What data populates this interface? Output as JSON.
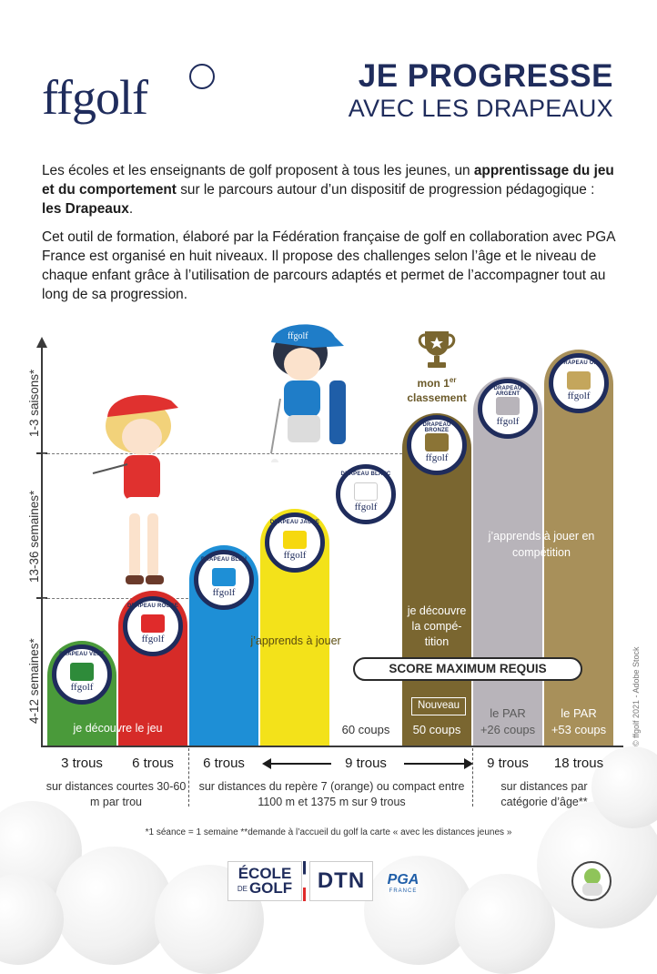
{
  "header": {
    "logo": "ffgolf",
    "title_line1": "JE PROGRESSE",
    "title_line2": "AVEC LES DRAPEAUX"
  },
  "intro": {
    "p1_a": "Les écoles et les enseignants de golf proposent à tous les jeunes, un ",
    "p1_b": "apprentissage du jeu et du comportement",
    "p1_c": " sur le parcours autour d’un dispositif de progression pédagogique : ",
    "p1_d": "les Drapeaux",
    "p1_e": ".",
    "p2": "Cet outil de formation, élaboré par la Fédération française de golf en collaboration avec PGA France est organisé en huit niveaux. Il propose des challenges selon l’âge et le niveau de chaque enfant grâce à l’utilisation de parcours adaptés et permet de l’accompagner tout au long de sa progression."
  },
  "axis": {
    "y_bottom": "4-12 semaines*",
    "y_middle": "13-36 semaines*",
    "y_top": "1-3 saisons*"
  },
  "flags": [
    {
      "name": "DRAPEAU VERT",
      "color": "#4a9a3a",
      "flag_color": "#2e8b3a"
    },
    {
      "name": "DRAPEAU ROUGE",
      "color": "#d62b28",
      "flag_color": "#e02b2b"
    },
    {
      "name": "DRAPEAU BLEU",
      "color": "#1e8fd6",
      "flag_color": "#1e8fd6"
    },
    {
      "name": "DRAPEAU JAUNE",
      "color": "#f3e21a",
      "flag_color": "#f6d80e"
    },
    {
      "name": "DRAPEAU BLANC",
      "color": "#ffffff",
      "flag_color": "#ffffff"
    },
    {
      "name": "DRAPEAU BRONZE",
      "color": "#7a6630",
      "flag_color": "#8b7436"
    },
    {
      "name": "DRAPEAU ARGENT",
      "color": "#b8b4ba",
      "flag_color": "#b8b4ba"
    },
    {
      "name": "DRAPEAU OR",
      "color": "#a8905a",
      "flag_color": "#c4a65c"
    }
  ],
  "bar_texts": {
    "vert": "je découvre le jeu",
    "jaune": "j’apprends à jouer",
    "bronze": "je découvre la compé-tition",
    "argent": "j’apprends à jouer en compétition",
    "score_max": "SCORE MAXIMUM REQUIS",
    "nouveau": "Nouveau",
    "blanc_coups": "60 coups",
    "bronze_coups": "50 coups",
    "argent_par": "le PAR",
    "argent_coups": "+26 coups",
    "or_par": "le PAR",
    "or_coups": "+53 coups"
  },
  "trophy": {
    "line1": "mon 1",
    "sup": "er",
    "line2": "classement"
  },
  "xlabels": {
    "l1": "3 trous",
    "l2": "6 trous",
    "l3": "6 trous",
    "l4": "9 trous",
    "l5": "9 trous",
    "l6": "18 trous",
    "sub1": "sur distances courtes 30-60 m par trou",
    "sub2": "sur distances du repère 7 (orange) ou compact entre 1100 m et 1375 m sur 9 trous",
    "sub3": "sur distances par catégorie d’âge**"
  },
  "footnote": "*1 séance = 1 semaine **demande à l’accueil du golf la carte « avec les distances jeunes »",
  "copyright": "© ffgolf 2021 - Adobe Stock",
  "footer": {
    "ecole1": "ÉCOLE",
    "ecole2": "DE",
    "ecole3": "GOLF",
    "dtn": "DTN",
    "pga": "PGA",
    "pga_sub": "FRANCE"
  },
  "character_cap": "ffgolf"
}
